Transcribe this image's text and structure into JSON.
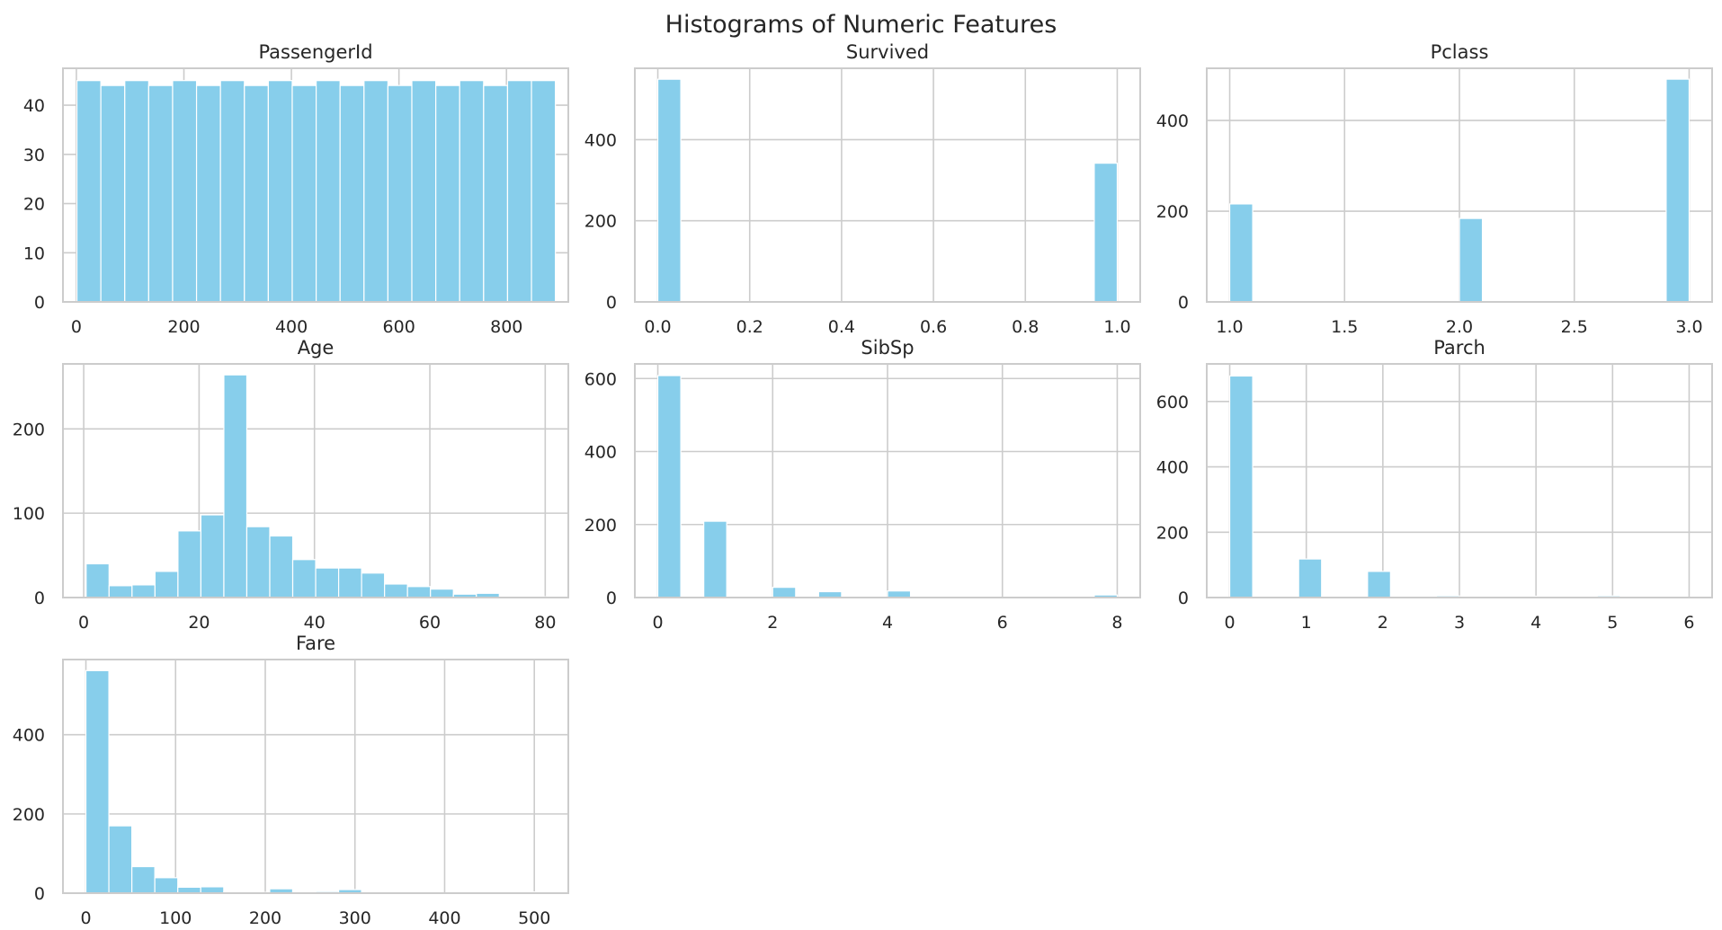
{
  "suptitle": "Histograms of Numeric Features",
  "colors": {
    "bar": "#87ceeb",
    "grid": "#cccccc",
    "spine": "#cccccc",
    "text": "#262626"
  },
  "chart_data": [
    {
      "type": "bar",
      "title": "PassengerId",
      "xlim": [
        -25,
        915
      ],
      "ylim": [
        0,
        47.5
      ],
      "xticks": [
        0,
        200,
        400,
        600,
        800
      ],
      "yticks": [
        0,
        10,
        20,
        30,
        40
      ],
      "bin_start": 1,
      "bin_end": 891,
      "values": [
        45,
        44,
        45,
        44,
        45,
        44,
        45,
        44,
        45,
        44,
        45,
        44,
        45,
        44,
        45,
        44,
        45,
        44,
        45,
        45
      ]
    },
    {
      "type": "bar",
      "title": "Survived",
      "xlim": [
        -0.05,
        1.05
      ],
      "ylim": [
        0,
        576
      ],
      "xticks": [
        "0.0",
        "0.2",
        "0.4",
        "0.6",
        "0.8",
        "1.0"
      ],
      "yticks": [
        0,
        200,
        400
      ],
      "bin_start": 0,
      "bin_end": 1,
      "values": [
        549,
        0,
        0,
        0,
        0,
        0,
        0,
        0,
        0,
        0,
        0,
        0,
        0,
        0,
        0,
        0,
        0,
        0,
        0,
        342
      ]
    },
    {
      "type": "bar",
      "title": "Pclass",
      "xlim": [
        0.9,
        3.1
      ],
      "ylim": [
        0,
        515
      ],
      "xticks": [
        "1.0",
        "1.5",
        "2.0",
        "2.5",
        "3.0"
      ],
      "yticks": [
        0,
        200,
        400
      ],
      "bin_start": 1,
      "bin_end": 3,
      "values": [
        216,
        0,
        0,
        0,
        0,
        0,
        0,
        0,
        0,
        0,
        184,
        0,
        0,
        0,
        0,
        0,
        0,
        0,
        0,
        491
      ]
    },
    {
      "type": "bar",
      "title": "Age",
      "xlim": [
        -3.6,
        84.0
      ],
      "ylim": [
        0,
        277
      ],
      "xticks": [
        0,
        20,
        40,
        60,
        80
      ],
      "yticks": [
        0,
        100,
        200
      ],
      "bin_start": 0.42,
      "bin_end": 80,
      "values": [
        40,
        14,
        15,
        31,
        79,
        98,
        264,
        84,
        73,
        45,
        35,
        35,
        29,
        16,
        13,
        10,
        4,
        5,
        0,
        1
      ]
    },
    {
      "type": "bar",
      "title": "SibSp",
      "xlim": [
        -0.4,
        8.4
      ],
      "ylim": [
        0,
        640
      ],
      "xticks": [
        0,
        2,
        4,
        6,
        8
      ],
      "yticks": [
        0,
        200,
        400,
        600
      ],
      "bin_start": 0,
      "bin_end": 8,
      "values": [
        608,
        0,
        209,
        0,
        0,
        28,
        0,
        16,
        0,
        0,
        18,
        0,
        0,
        0,
        0,
        0,
        0,
        0,
        0,
        7
      ]
    },
    {
      "type": "bar",
      "title": "Parch",
      "xlim": [
        -0.3,
        6.3
      ],
      "ylim": [
        0,
        715
      ],
      "xticks": [
        0,
        1,
        2,
        3,
        4,
        5,
        6
      ],
      "yticks": [
        0,
        200,
        400,
        600
      ],
      "bin_start": 0,
      "bin_end": 6,
      "values": [
        678,
        0,
        0,
        118,
        0,
        0,
        80,
        0,
        0,
        5,
        0,
        0,
        0,
        4,
        0,
        0,
        5,
        0,
        0,
        1
      ]
    },
    {
      "type": "bar",
      "title": "Fare",
      "xlim": [
        -25.6,
        537.9
      ],
      "ylim": [
        0,
        590
      ],
      "xticks": [
        0,
        100,
        200,
        300,
        400,
        500
      ],
      "yticks": [
        0,
        200,
        400
      ],
      "bin_start": 0,
      "bin_end": 512.33,
      "values": [
        562,
        170,
        67,
        39,
        15,
        16,
        2,
        2,
        11,
        2,
        4,
        9,
        0,
        0,
        0,
        0,
        0,
        0,
        0,
        3
      ]
    }
  ]
}
